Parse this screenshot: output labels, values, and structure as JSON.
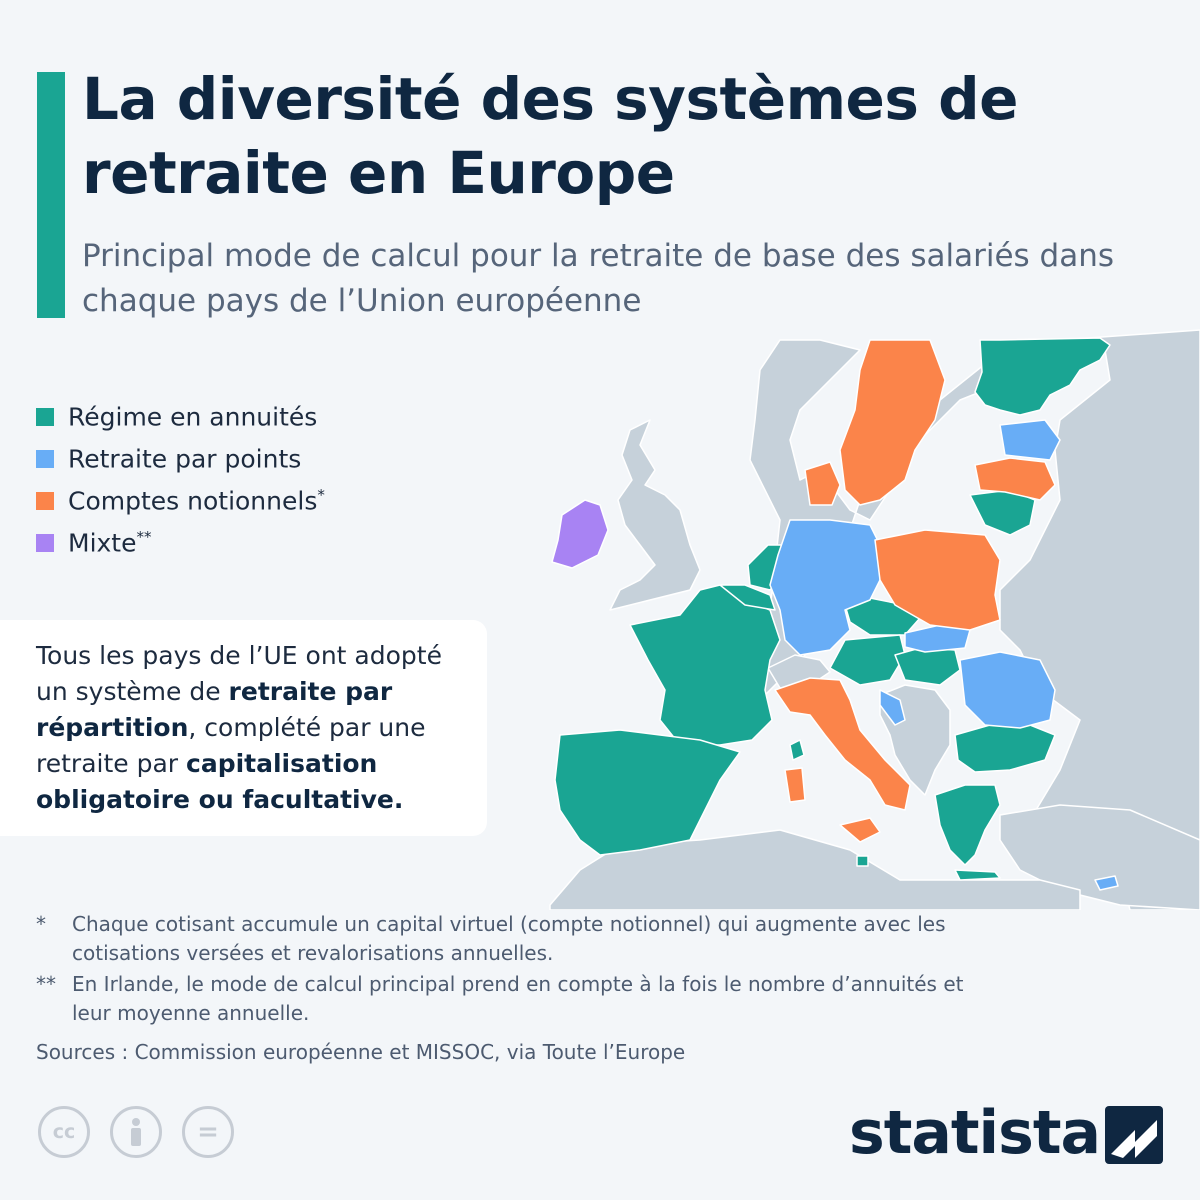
{
  "title": "La diversité des systèmes de retraite en Europe",
  "subtitle": "Principal mode de calcul pour la retraite de base des salariés dans chaque pays de l’Union européenne",
  "legend": [
    {
      "label": "Régime en annuités",
      "mark": "",
      "color": "#1aa593"
    },
    {
      "label": "Retraite par points",
      "mark": "",
      "color": "#68adf6"
    },
    {
      "label": "Comptes notionnels",
      "mark": "*",
      "color": "#fb844a"
    },
    {
      "label": "Mixte",
      "mark": "**",
      "color": "#a883f3"
    }
  ],
  "colors": {
    "annuites": "#1aa593",
    "points": "#68adf6",
    "notionnels": "#fb844a",
    "mixte": "#a883f3",
    "non_eu": "#c6d1da",
    "sea": "#f3f6f9",
    "border": "#ffffff"
  },
  "note": {
    "p1": "Tous les pays de l’UE ont adopté un système de ",
    "b1": "retraite par répartition",
    "p2": ", complété par une retraite par ",
    "b2": "capitalisation obligatoire ou facultative."
  },
  "footnotes": [
    {
      "mark": "*",
      "text": "Chaque cotisant accumule un capital virtuel (compte notionnel) qui augmente avec les cotisations versées et revalorisations annuelles."
    },
    {
      "mark": "**",
      "text": "En Irlande, le mode de calcul principal prend en compte à la fois le nombre d’annuités et leur moyenne annuelle."
    }
  ],
  "sources": "Sources : Commission européenne et MISSOC, via Toute l’Europe",
  "license_icons": {
    "cc": "cc",
    "by": "attribution-person-icon",
    "nd": "="
  },
  "brand": "statista"
}
